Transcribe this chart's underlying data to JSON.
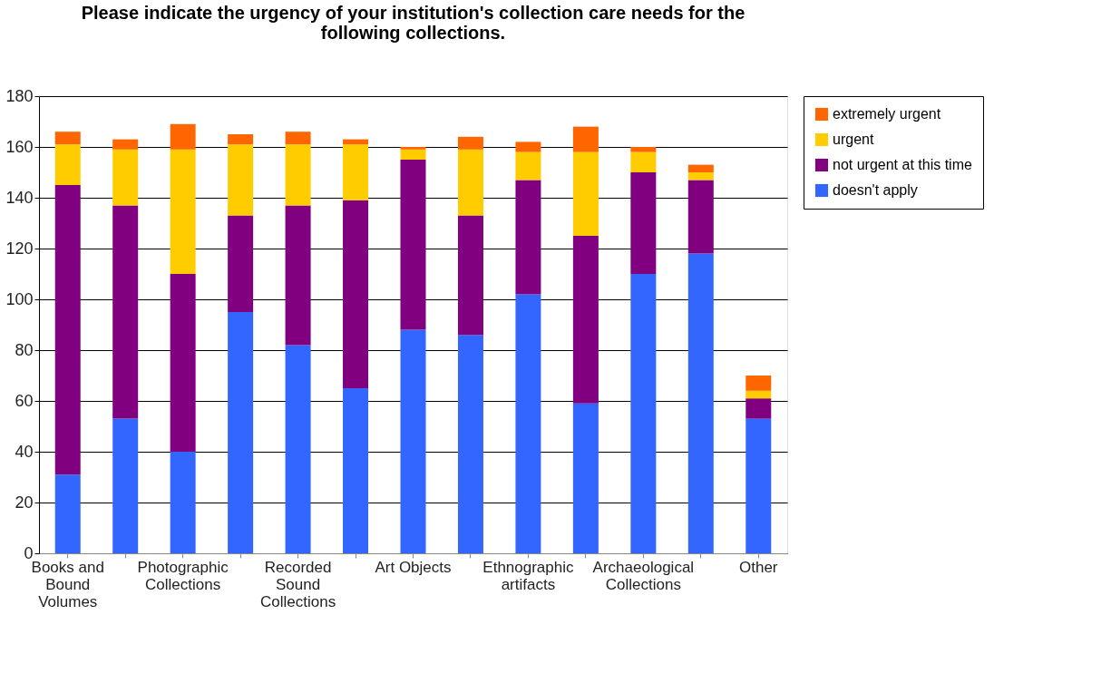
{
  "chart_data": {
    "type": "bar",
    "title": "Please indicate the  urgency of your institution's collection care needs for the following collections.",
    "categories": [
      "Books and Bound Volumes",
      null,
      "Photographic Collections",
      null,
      "Recorded Sound Collections",
      null,
      "Art Objects",
      null,
      "Ethnographic artifacts",
      null,
      "Archaeological Collections",
      null,
      "Other"
    ],
    "stacked": true,
    "series": [
      {
        "name": "doesn't apply",
        "color": "#3366ff",
        "values": [
          31,
          53,
          40,
          95,
          82,
          65,
          88,
          86,
          102,
          59,
          110,
          118,
          53
        ]
      },
      {
        "name": "not urgent at this time",
        "color": "#800080",
        "values": [
          114,
          84,
          70,
          38,
          55,
          74,
          67,
          47,
          45,
          66,
          40,
          29,
          8
        ]
      },
      {
        "name": "urgent",
        "color": "#ffcc00",
        "values": [
          16,
          22,
          49,
          28,
          24,
          22,
          4,
          26,
          11,
          33,
          8,
          3,
          3
        ]
      },
      {
        "name": "extremely urgent",
        "color": "#ff6600",
        "values": [
          5,
          4,
          10,
          4,
          5,
          2,
          1,
          5,
          4,
          10,
          2,
          3,
          6
        ]
      }
    ],
    "ylim": [
      0,
      180
    ],
    "yticks": [
      0,
      20,
      40,
      60,
      80,
      100,
      120,
      140,
      160,
      180
    ],
    "grid": "y",
    "legend": "right"
  }
}
